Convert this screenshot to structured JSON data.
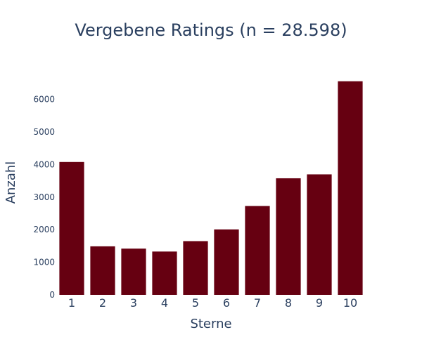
{
  "chart_data": {
    "type": "bar",
    "title": "Vergebene Ratings (n = 28.598)",
    "xlabel": "Sterne",
    "ylabel": "Anzahl",
    "categories": [
      "1",
      "2",
      "3",
      "4",
      "5",
      "6",
      "7",
      "8",
      "9",
      "10"
    ],
    "values": [
      4080,
      1490,
      1420,
      1330,
      1650,
      2010,
      2730,
      3580,
      3700,
      6560
    ],
    "ylim": [
      0,
      6900
    ],
    "yticks": [
      0,
      1000,
      2000,
      3000,
      4000,
      5000,
      6000
    ],
    "bar_color": "#660011",
    "grid": false,
    "legend": "none"
  }
}
